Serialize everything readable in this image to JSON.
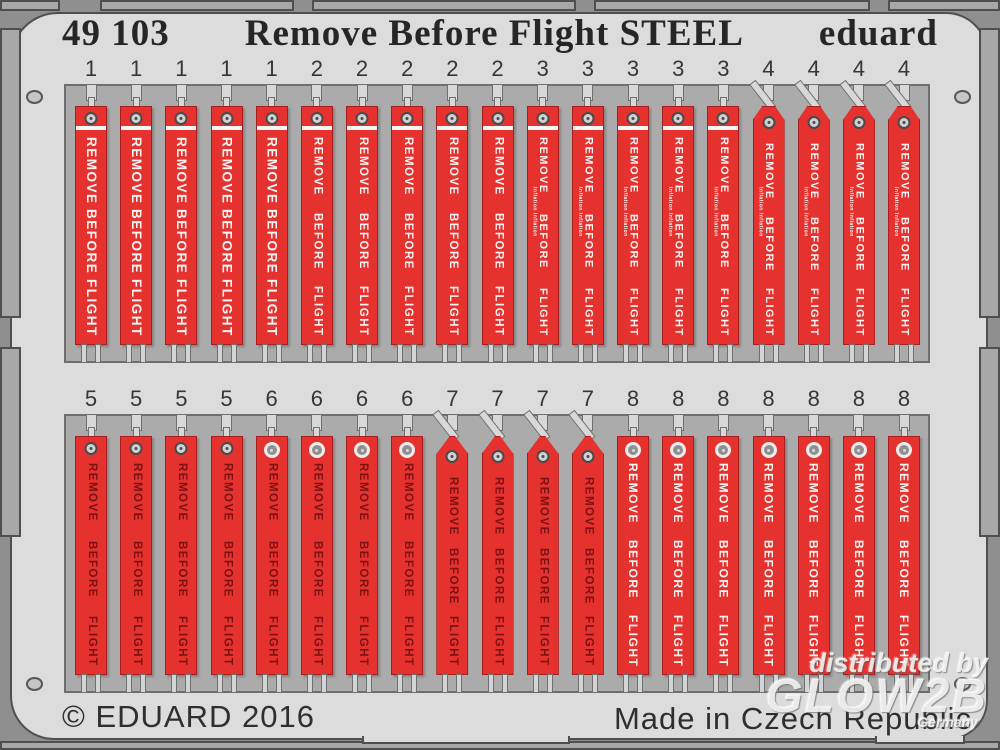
{
  "title": {
    "code": "49 103",
    "name": "Remove Before Flight STEEL",
    "brand": "eduard"
  },
  "tag_words": [
    "REMOVE",
    "BEFORE",
    "FLIGHT"
  ],
  "tag_small_text": "Inflation Inflation",
  "rows": [
    {
      "groups": [
        {
          "label": "1",
          "count": 5,
          "type": "t1"
        },
        {
          "label": "2",
          "count": 5,
          "type": "t2"
        },
        {
          "label": "3",
          "count": 5,
          "type": "t3"
        },
        {
          "label": "4",
          "count": 4,
          "type": "t4"
        }
      ]
    },
    {
      "groups": [
        {
          "label": "5",
          "count": 4,
          "type": "t5"
        },
        {
          "label": "6",
          "count": 4,
          "type": "t6"
        },
        {
          "label": "7",
          "count": 4,
          "type": "t7"
        },
        {
          "label": "8",
          "count": 7,
          "type": "t8"
        }
      ]
    }
  ],
  "tag_types": {
    "t1": {
      "top": "flat",
      "bar": true,
      "tone": "light",
      "grommet": "small",
      "small_text": false,
      "font": 13.5
    },
    "t2": {
      "top": "flat",
      "bar": true,
      "tone": "light",
      "grommet": "small",
      "small_text": false,
      "font": 11.5
    },
    "t3": {
      "top": "flat",
      "bar": true,
      "tone": "light",
      "grommet": "small",
      "small_text": true,
      "font": 11
    },
    "t4": {
      "top": "peak",
      "bar": false,
      "tone": "light",
      "grommet": "small",
      "small_text": true,
      "font": 11
    },
    "t5": {
      "top": "flat",
      "bar": false,
      "tone": "dark",
      "grommet": "small",
      "small_text": false,
      "font": 11.5
    },
    "t6": {
      "top": "flat",
      "bar": false,
      "tone": "dark",
      "grommet": "large",
      "small_text": false,
      "font": 11.5
    },
    "t7": {
      "top": "point",
      "bar": false,
      "tone": "dark",
      "grommet": "small",
      "small_text": false,
      "font": 11.5
    },
    "t8": {
      "top": "flat",
      "bar": false,
      "tone": "light",
      "grommet": "large",
      "small_text": false,
      "font": 12
    }
  },
  "footer": {
    "copyright": "© EDUARD 2016",
    "origin": "Made in Czech Republic"
  },
  "watermark": {
    "line1": "distributed by",
    "line2": "GLOW2B",
    "line3": "Germany"
  },
  "colors": {
    "tag_red": "#e5322e",
    "fret_light": "#dcdcdc",
    "panel_gray": "#ababab",
    "frame_gray": "#a8a8a8",
    "text_light": "#f4f4f4",
    "text_dark": "#7a1113"
  }
}
